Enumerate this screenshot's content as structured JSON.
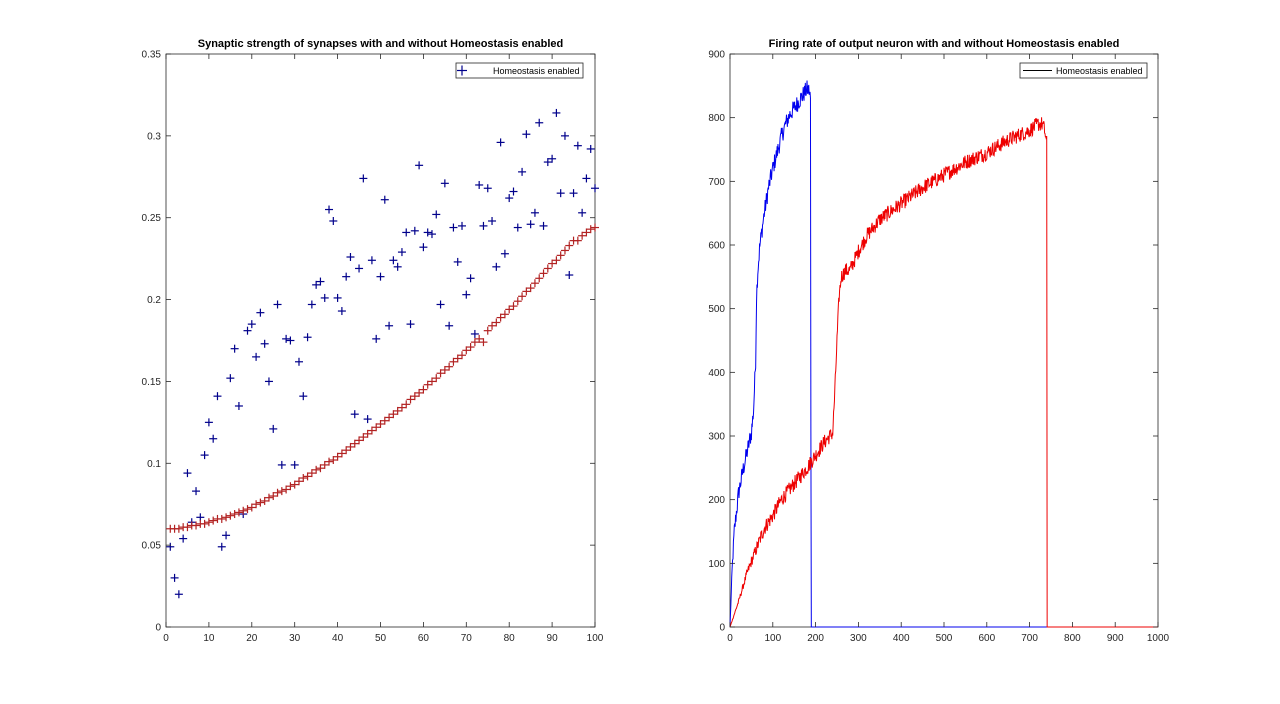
{
  "chart_data": [
    {
      "type": "scatter",
      "title": "Synaptic strength of synapses with and without Homeostasis enabled",
      "xlabel": "",
      "ylabel": "",
      "xlim": [
        0,
        100
      ],
      "ylim": [
        0,
        0.35
      ],
      "xticks": [
        0,
        10,
        20,
        30,
        40,
        50,
        60,
        70,
        80,
        90,
        100
      ],
      "yticks": [
        0,
        0.05,
        0.1,
        0.15,
        0.2,
        0.25,
        0.3,
        0.35
      ],
      "ytick_labels": [
        "0",
        "0.05",
        "0.1",
        "0.15",
        "0.2",
        "0.25",
        "0.3",
        "0.35"
      ],
      "legend": {
        "position": "top-right",
        "entries": [
          {
            "label": "Homeostasis enabled",
            "series": 0
          }
        ]
      },
      "grid": false,
      "series": [
        {
          "color": "#00008b",
          "marker": "+",
          "x": [
            1,
            2,
            3,
            4,
            5,
            6,
            7,
            8,
            9,
            10,
            11,
            12,
            13,
            14,
            15,
            16,
            17,
            18,
            19,
            20,
            21,
            22,
            23,
            24,
            25,
            26,
            27,
            28,
            29,
            30,
            31,
            32,
            33,
            34,
            35,
            36,
            37,
            38,
            39,
            40,
            41,
            42,
            43,
            44,
            45,
            46,
            47,
            48,
            49,
            50,
            51,
            52,
            53,
            54,
            55,
            56,
            57,
            58,
            59,
            60,
            61,
            62,
            63,
            64,
            65,
            66,
            67,
            68,
            69,
            70,
            71,
            72,
            73,
            74,
            75,
            76,
            77,
            78,
            79,
            80,
            81,
            82,
            83,
            84,
            85,
            86,
            87,
            88,
            89,
            90,
            91,
            92,
            93,
            94,
            95,
            96,
            97,
            98,
            99,
            100
          ],
          "y": [
            0.049,
            0.03,
            0.02,
            0.054,
            0.094,
            0.064,
            0.083,
            0.067,
            0.105,
            0.125,
            0.115,
            0.141,
            0.049,
            0.056,
            0.152,
            0.17,
            0.135,
            0.069,
            0.181,
            0.185,
            0.165,
            0.192,
            0.173,
            0.15,
            0.121,
            0.197,
            0.099,
            0.176,
            0.175,
            0.099,
            0.162,
            0.141,
            0.177,
            0.197,
            0.209,
            0.211,
            0.201,
            0.255,
            0.248,
            0.201,
            0.193,
            0.214,
            0.226,
            0.13,
            0.219,
            0.274,
            0.127,
            0.224,
            0.176,
            0.214,
            0.261,
            0.184,
            0.224,
            0.22,
            0.229,
            0.241,
            0.185,
            0.242,
            0.282,
            0.232,
            0.241,
            0.24,
            0.252,
            0.197,
            0.271,
            0.184,
            0.244,
            0.223,
            0.245,
            0.203,
            0.213,
            0.179,
            0.27,
            0.245,
            0.268,
            0.248,
            0.22,
            0.296,
            0.228,
            0.262,
            0.266,
            0.244,
            0.278,
            0.301,
            0.246,
            0.253,
            0.308,
            0.245,
            0.284,
            0.286,
            0.314,
            0.265,
            0.3,
            0.215,
            0.265,
            0.294,
            0.253,
            0.274,
            0.292,
            0.268
          ]
        },
        {
          "color": "#b22222",
          "marker": "+",
          "x": [
            1,
            2,
            3,
            4,
            5,
            6,
            7,
            8,
            9,
            10,
            11,
            12,
            13,
            14,
            15,
            16,
            17,
            18,
            19,
            20,
            21,
            22,
            23,
            24,
            25,
            26,
            27,
            28,
            29,
            30,
            31,
            32,
            33,
            34,
            35,
            36,
            37,
            38,
            39,
            40,
            41,
            42,
            43,
            44,
            45,
            46,
            47,
            48,
            49,
            50,
            51,
            52,
            53,
            54,
            55,
            56,
            57,
            58,
            59,
            60,
            61,
            62,
            63,
            64,
            65,
            66,
            67,
            68,
            69,
            70,
            71,
            72,
            73,
            74,
            75,
            76,
            77,
            78,
            79,
            80,
            81,
            82,
            83,
            84,
            85,
            86,
            87,
            88,
            89,
            90,
            91,
            92,
            93,
            94,
            95,
            96,
            97,
            98,
            99,
            100
          ],
          "y": [
            0.06,
            0.06,
            0.06,
            0.061,
            0.061,
            0.062,
            0.062,
            0.063,
            0.063,
            0.064,
            0.065,
            0.066,
            0.066,
            0.067,
            0.068,
            0.069,
            0.07,
            0.071,
            0.072,
            0.073,
            0.075,
            0.076,
            0.077,
            0.079,
            0.08,
            0.082,
            0.083,
            0.084,
            0.086,
            0.087,
            0.089,
            0.091,
            0.092,
            0.094,
            0.096,
            0.097,
            0.099,
            0.101,
            0.102,
            0.104,
            0.106,
            0.108,
            0.11,
            0.112,
            0.114,
            0.116,
            0.118,
            0.12,
            0.122,
            0.124,
            0.126,
            0.128,
            0.13,
            0.132,
            0.134,
            0.136,
            0.139,
            0.141,
            0.143,
            0.145,
            0.148,
            0.15,
            0.152,
            0.155,
            0.157,
            0.159,
            0.162,
            0.164,
            0.166,
            0.169,
            0.171,
            0.174,
            0.176,
            0.174,
            0.181,
            0.184,
            0.186,
            0.189,
            0.191,
            0.194,
            0.196,
            0.199,
            0.202,
            0.205,
            0.207,
            0.21,
            0.213,
            0.216,
            0.219,
            0.222,
            0.224,
            0.227,
            0.23,
            0.233,
            0.236,
            0.236,
            0.239,
            0.241,
            0.243,
            0.244
          ]
        }
      ]
    },
    {
      "type": "line",
      "title": "Firing rate of output neuron with and without Homeostasis enabled",
      "xlabel": "",
      "ylabel": "",
      "xlim": [
        0,
        1000
      ],
      "ylim": [
        0,
        900
      ],
      "xticks": [
        0,
        100,
        200,
        300,
        400,
        500,
        600,
        700,
        800,
        900,
        1000
      ],
      "yticks": [
        0,
        100,
        200,
        300,
        400,
        500,
        600,
        700,
        800,
        900
      ],
      "legend": {
        "position": "top-right",
        "entries": [
          {
            "label": "Homeostasis enabled",
            "color": "#000000"
          }
        ]
      },
      "grid": false,
      "series": [
        {
          "color": "#0000ee",
          "noise": 14,
          "x": [
            0,
            5,
            10,
            20,
            30,
            40,
            50,
            55,
            60,
            62,
            65,
            70,
            80,
            90,
            100,
            110,
            120,
            130,
            140,
            150,
            160,
            170,
            180,
            185,
            188,
            189,
            190,
            195,
            200,
            300,
            400,
            500,
            600,
            700,
            800,
            900,
            1000
          ],
          "y": [
            0,
            90,
            150,
            210,
            245,
            275,
            305,
            340,
            420,
            520,
            560,
            600,
            650,
            690,
            720,
            745,
            770,
            790,
            805,
            815,
            825,
            835,
            845,
            842,
            830,
            300,
            0,
            0,
            0,
            0,
            0,
            0,
            0,
            0,
            0,
            0,
            0
          ]
        },
        {
          "color": "#ee0000",
          "noise": 12,
          "x": [
            0,
            20,
            40,
            60,
            80,
            100,
            120,
            150,
            180,
            200,
            220,
            240,
            245,
            250,
            255,
            260,
            270,
            280,
            300,
            320,
            350,
            400,
            450,
            500,
            550,
            600,
            650,
            700,
            720,
            730,
            735,
            740,
            741,
            745,
            800,
            900,
            1000
          ],
          "y": [
            0,
            40,
            85,
            120,
            155,
            175,
            200,
            225,
            250,
            270,
            290,
            305,
            370,
            450,
            520,
            550,
            560,
            560,
            590,
            615,
            640,
            665,
            690,
            710,
            730,
            745,
            765,
            780,
            790,
            790,
            780,
            760,
            0,
            0,
            0,
            0,
            0
          ]
        }
      ]
    }
  ]
}
